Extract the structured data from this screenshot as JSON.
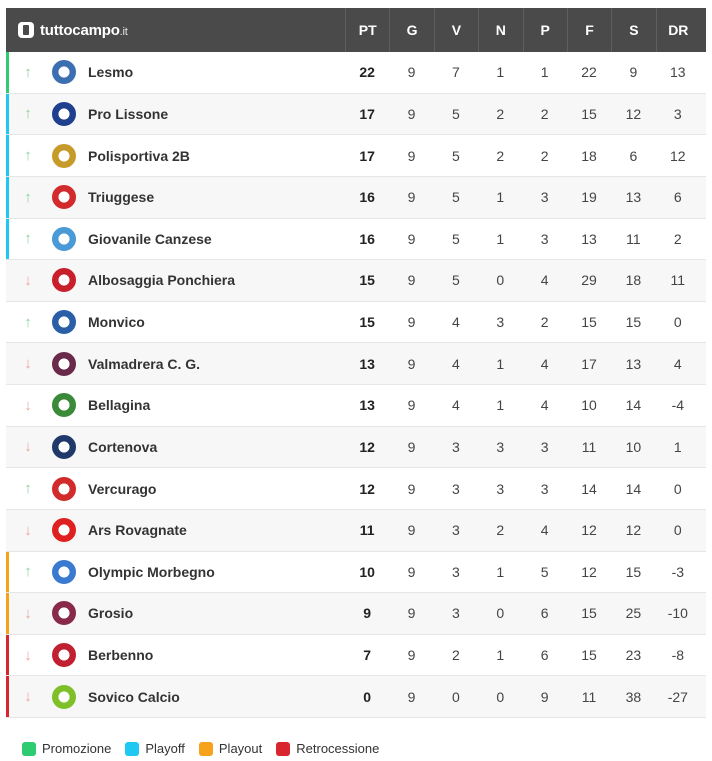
{
  "brand": {
    "name": "tuttocampo",
    "tld": ".it"
  },
  "columns": [
    "PT",
    "G",
    "V",
    "N",
    "P",
    "F",
    "S",
    "DR"
  ],
  "colors": {
    "promozione": "#2ecc71",
    "playoff": "#1ec8f0",
    "playout": "#f7a21b",
    "retrocessione": "#d9262e"
  },
  "rows": [
    {
      "team": "Lesmo",
      "trend": "up",
      "zone": "promozione",
      "logo_icon": "lesmo-crest-icon",
      "PT": "22",
      "G": "9",
      "V": "7",
      "N": "1",
      "P": "1",
      "F": "22",
      "S": "9",
      "DR": "13"
    },
    {
      "team": "Pro Lissone",
      "trend": "up",
      "zone": "playoff",
      "logo_icon": "pro-lissone-crest-icon",
      "PT": "17",
      "G": "9",
      "V": "5",
      "N": "2",
      "P": "2",
      "F": "15",
      "S": "12",
      "DR": "3"
    },
    {
      "team": "Polisportiva 2B",
      "trend": "up",
      "zone": "playoff",
      "logo_icon": "polisportiva-2b-crest-icon",
      "PT": "17",
      "G": "9",
      "V": "5",
      "N": "2",
      "P": "2",
      "F": "18",
      "S": "6",
      "DR": "12"
    },
    {
      "team": "Triuggese",
      "trend": "up",
      "zone": "playoff",
      "logo_icon": "triuggese-crest-icon",
      "PT": "16",
      "G": "9",
      "V": "5",
      "N": "1",
      "P": "3",
      "F": "19",
      "S": "13",
      "DR": "6"
    },
    {
      "team": "Giovanile Canzese",
      "trend": "up",
      "zone": "playoff",
      "logo_icon": "giovanile-canzese-crest-icon",
      "PT": "16",
      "G": "9",
      "V": "5",
      "N": "1",
      "P": "3",
      "F": "13",
      "S": "11",
      "DR": "2"
    },
    {
      "team": "Albosaggia Ponchiera",
      "trend": "down",
      "zone": "",
      "logo_icon": "albosaggia-crest-icon",
      "PT": "15",
      "G": "9",
      "V": "5",
      "N": "0",
      "P": "4",
      "F": "29",
      "S": "18",
      "DR": "11"
    },
    {
      "team": "Monvico",
      "trend": "up",
      "zone": "",
      "logo_icon": "monvico-crest-icon",
      "PT": "15",
      "G": "9",
      "V": "4",
      "N": "3",
      "P": "2",
      "F": "15",
      "S": "15",
      "DR": "0"
    },
    {
      "team": "Valmadrera C. G.",
      "trend": "down",
      "zone": "",
      "logo_icon": "valmadrera-crest-icon",
      "PT": "13",
      "G": "9",
      "V": "4",
      "N": "1",
      "P": "4",
      "F": "17",
      "S": "13",
      "DR": "4"
    },
    {
      "team": "Bellagina",
      "trend": "down",
      "zone": "",
      "logo_icon": "bellagina-crest-icon",
      "PT": "13",
      "G": "9",
      "V": "4",
      "N": "1",
      "P": "4",
      "F": "10",
      "S": "14",
      "DR": "-4"
    },
    {
      "team": "Cortenova",
      "trend": "down",
      "zone": "",
      "logo_icon": "cortenova-crest-icon",
      "PT": "12",
      "G": "9",
      "V": "3",
      "N": "3",
      "P": "3",
      "F": "11",
      "S": "10",
      "DR": "1"
    },
    {
      "team": "Vercurago",
      "trend": "up",
      "zone": "",
      "logo_icon": "vercurago-crest-icon",
      "PT": "12",
      "G": "9",
      "V": "3",
      "N": "3",
      "P": "3",
      "F": "14",
      "S": "14",
      "DR": "0"
    },
    {
      "team": "Ars Rovagnate",
      "trend": "down",
      "zone": "",
      "logo_icon": "ars-rovagnate-crest-icon",
      "PT": "11",
      "G": "9",
      "V": "3",
      "N": "2",
      "P": "4",
      "F": "12",
      "S": "12",
      "DR": "0"
    },
    {
      "team": "Olympic Morbegno",
      "trend": "up",
      "zone": "playout",
      "logo_icon": "olympic-morbegno-crest-icon",
      "PT": "10",
      "G": "9",
      "V": "3",
      "N": "1",
      "P": "5",
      "F": "12",
      "S": "15",
      "DR": "-3"
    },
    {
      "team": "Grosio",
      "trend": "down",
      "zone": "playout",
      "logo_icon": "grosio-crest-icon",
      "PT": "9",
      "G": "9",
      "V": "3",
      "N": "0",
      "P": "6",
      "F": "15",
      "S": "25",
      "DR": "-10"
    },
    {
      "team": "Berbenno",
      "trend": "down",
      "zone": "retrocessione",
      "logo_icon": "berbenno-crest-icon",
      "PT": "7",
      "G": "9",
      "V": "2",
      "N": "1",
      "P": "6",
      "F": "15",
      "S": "23",
      "DR": "-8"
    },
    {
      "team": "Sovico Calcio",
      "trend": "down",
      "zone": "retrocessione",
      "logo_icon": "sovico-calcio-crest-icon",
      "PT": "0",
      "G": "9",
      "V": "0",
      "N": "0",
      "P": "9",
      "F": "11",
      "S": "38",
      "DR": "-27"
    }
  ],
  "logo_colors": [
    "#3b6fb0",
    "#1f3f8f",
    "#c79b2a",
    "#d12b2b",
    "#4a9ad8",
    "#c8202a",
    "#2a5fa8",
    "#6a2a4a",
    "#3a8a3a",
    "#1f3a6a",
    "#d12b2b",
    "#e02020",
    "#3a7ad0",
    "#8a2a4a",
    "#c02030",
    "#7fbf2a"
  ],
  "legend": [
    {
      "label": "Promozione",
      "color": "#2ecc71"
    },
    {
      "label": "Playoff",
      "color": "#1ec8f0"
    },
    {
      "label": "Playout",
      "color": "#f7a21b"
    },
    {
      "label": "Retrocessione",
      "color": "#d9262e"
    }
  ]
}
